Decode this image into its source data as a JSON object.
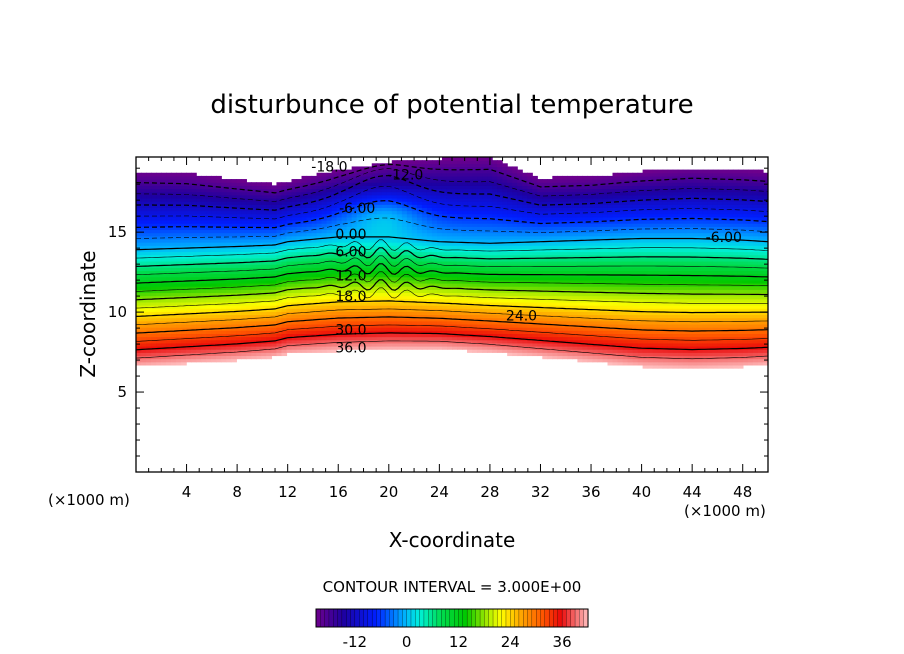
{
  "chart_data": {
    "type": "contour",
    "title": "disturbunce of potential temperature",
    "xlabel": "X-coordinate",
    "ylabel": "Z-coordinate",
    "x_unit": "(×1000 m)",
    "x_unit_right": "(×1000 m)",
    "xlim": [
      0,
      50
    ],
    "ylim": [
      0,
      19.7
    ],
    "x_ticks": [
      4,
      8,
      12,
      16,
      20,
      24,
      28,
      32,
      36,
      40,
      44,
      48
    ],
    "y_ticks": [
      5,
      10,
      15
    ],
    "contour_interval_text": "CONTOUR INTERVAL = 3.000E+00",
    "contour_interval": 3,
    "value_range": [
      -21,
      42
    ],
    "colorbar_ticks": [
      -12,
      0,
      12,
      24,
      36
    ],
    "contour_labels": [
      {
        "text": "-18.0",
        "x": 15.3,
        "z": 19.1
      },
      {
        "text": "-12.0",
        "x": 21.3,
        "z": 18.6
      },
      {
        "text": "-6.00",
        "x": 17.5,
        "z": 16.5
      },
      {
        "text": "0.00",
        "x": 17.0,
        "z": 14.9
      },
      {
        "text": "6.00",
        "x": 17.0,
        "z": 13.8
      },
      {
        "text": "12.0",
        "x": 17.0,
        "z": 12.3
      },
      {
        "text": "18.0",
        "x": 17.0,
        "z": 11.0
      },
      {
        "text": "24.0",
        "x": 30.5,
        "z": 9.8
      },
      {
        "text": "30.0",
        "x": 17.0,
        "z": 8.9
      },
      {
        "text": "36.0",
        "x": 17.0,
        "z": 7.8
      },
      {
        "text": "-6.00",
        "x": 46.5,
        "z": 14.7
      }
    ],
    "field_layers": [
      {
        "x": [
          0,
          4,
          8,
          11,
          12,
          16,
          20,
          24,
          28,
          32,
          36,
          40,
          44,
          48,
          50
        ],
        "z": [
          6.6,
          6.8,
          7.0,
          7.2,
          7.4,
          7.6,
          7.7,
          7.7,
          7.5,
          7.2,
          6.9,
          6.6,
          6.5,
          6.6,
          6.7
        ]
      },
      {
        "x": [
          0,
          4,
          8,
          11,
          12,
          16,
          20,
          24,
          28,
          32,
          36,
          40,
          44,
          48,
          50
        ],
        "z": [
          13.9,
          14.0,
          14.1,
          14.2,
          14.4,
          14.7,
          14.7,
          14.4,
          14.3,
          14.4,
          14.5,
          14.6,
          14.6,
          14.5,
          14.4
        ]
      },
      {
        "x": [
          0,
          4,
          8,
          11,
          12,
          16,
          20,
          24,
          28,
          32,
          36,
          40,
          44,
          48,
          50
        ],
        "z": [
          18.8,
          18.7,
          18.3,
          18.0,
          18.2,
          18.9,
          19.4,
          19.6,
          19.7,
          18.4,
          18.5,
          18.8,
          19.0,
          18.9,
          18.8
        ]
      }
    ]
  }
}
